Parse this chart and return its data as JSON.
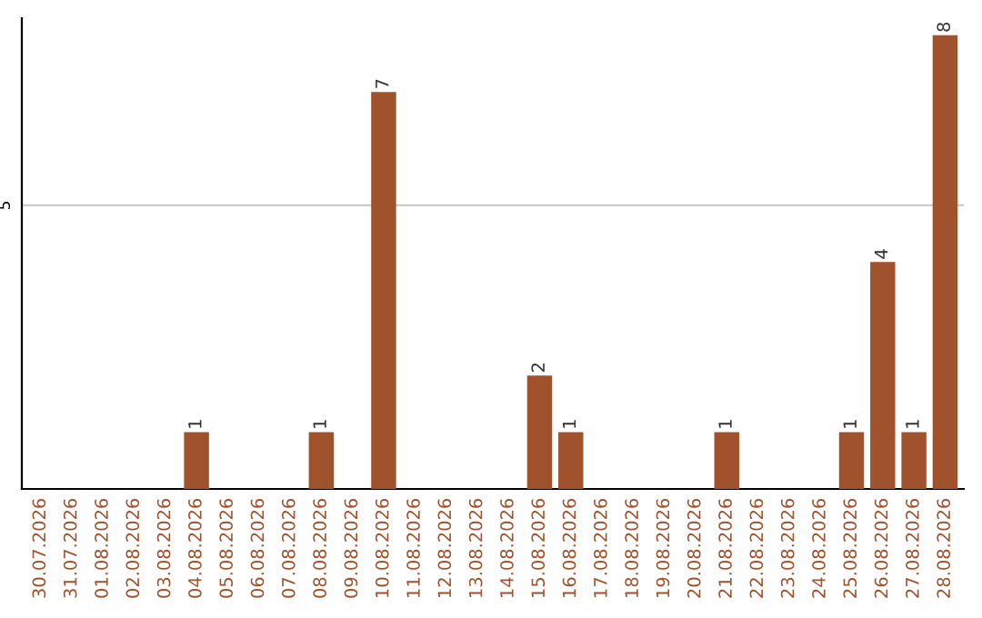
{
  "chart_data": {
    "type": "bar",
    "categories": [
      "30.07.2026",
      "31.07.2026",
      "01.08.2026",
      "02.08.2026",
      "03.08.2026",
      "04.08.2026",
      "05.08.2026",
      "06.08.2026",
      "07.08.2026",
      "08.08.2026",
      "09.08.2026",
      "10.08.2026",
      "11.08.2026",
      "12.08.2026",
      "13.08.2026",
      "14.08.2026",
      "15.08.2026",
      "16.08.2026",
      "17.08.2026",
      "18.08.2026",
      "19.08.2026",
      "20.08.2026",
      "21.08.2026",
      "22.08.2026",
      "23.08.2026",
      "24.08.2026",
      "25.08.2026",
      "26.08.2026",
      "27.08.2026",
      "28.08.2026"
    ],
    "values": [
      0,
      0,
      0,
      0,
      0,
      1,
      0,
      0,
      0,
      1,
      0,
      7,
      0,
      0,
      0,
      0,
      2,
      1,
      0,
      0,
      0,
      0,
      1,
      0,
      0,
      0,
      1,
      4,
      1,
      8
    ],
    "value_labels": [
      null,
      null,
      null,
      null,
      null,
      "1",
      null,
      null,
      null,
      "1",
      null,
      "7",
      null,
      null,
      null,
      null,
      "2",
      "1",
      null,
      null,
      null,
      null,
      "1",
      null,
      null,
      null,
      "1",
      "4",
      "1",
      "8"
    ],
    "color": "#a0522d",
    "ylim": [
      0,
      8.3
    ],
    "yticks": [
      5
    ],
    "grid": "y"
  }
}
